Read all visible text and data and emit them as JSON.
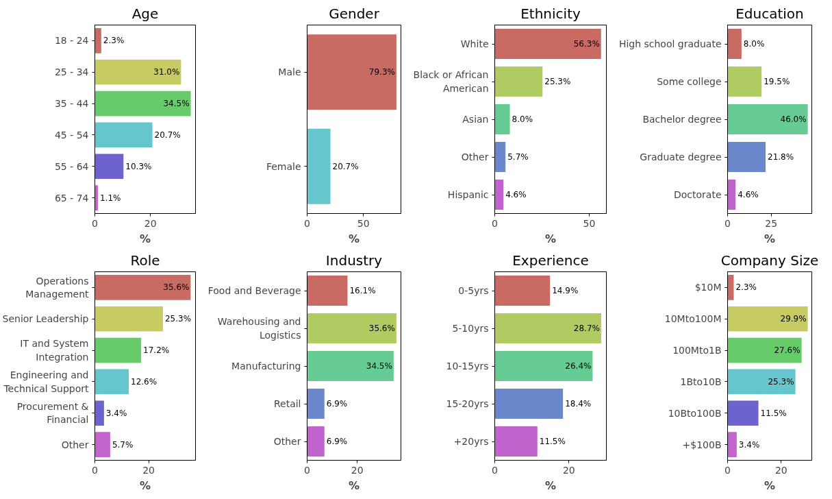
{
  "chart_data": [
    {
      "type": "bar",
      "orientation": "horizontal",
      "title": "Age",
      "xlabel": "%",
      "categories": [
        "18 - 24",
        "25 - 34",
        "35 - 44",
        "45 - 54",
        "55 - 64",
        "65 - 74"
      ],
      "values": [
        2.3,
        31.0,
        34.5,
        20.7,
        10.3,
        1.1
      ],
      "value_labels": [
        "2.3%",
        "31.0%",
        "34.5%",
        "20.7%",
        "10.3%",
        "1.1%"
      ],
      "colors": [
        "#c96b63",
        "#c6cb63",
        "#66cc6a",
        "#66c6cd",
        "#6c63cc",
        "#c363cc"
      ],
      "xlim": [
        0,
        36.2
      ],
      "xticks": [
        0,
        20
      ],
      "grid": false,
      "legend": false
    },
    {
      "type": "bar",
      "orientation": "horizontal",
      "title": "Gender",
      "xlabel": "%",
      "categories": [
        "Male",
        "Female"
      ],
      "values": [
        79.3,
        20.7
      ],
      "value_labels": [
        "79.3%",
        "20.7%"
      ],
      "colors": [
        "#c96b63",
        "#66c6cd"
      ],
      "xlim": [
        0,
        83.3
      ],
      "xticks": [
        0,
        50
      ],
      "grid": false,
      "legend": false
    },
    {
      "type": "bar",
      "orientation": "horizontal",
      "title": "Ethnicity",
      "xlabel": "%",
      "categories": [
        "White",
        "Black or African American",
        "Asian",
        "Other",
        "Hispanic"
      ],
      "values": [
        56.3,
        25.3,
        8.0,
        5.7,
        4.6
      ],
      "value_labels": [
        "56.3%",
        "25.3%",
        "8.0%",
        "5.7%",
        "4.6%"
      ],
      "colors": [
        "#c96b63",
        "#b1cb63",
        "#66cc94",
        "#6b88cc",
        "#c063cc"
      ],
      "xlim": [
        0,
        59.1
      ],
      "xticks": [
        0,
        50
      ],
      "grid": false,
      "legend": false
    },
    {
      "type": "bar",
      "orientation": "horizontal",
      "title": "Education",
      "xlabel": "%",
      "categories": [
        "High school graduate",
        "Some college",
        "Bachelor degree",
        "Graduate degree",
        "Doctorate"
      ],
      "values": [
        8.0,
        19.5,
        46.0,
        21.8,
        4.6
      ],
      "value_labels": [
        "8.0%",
        "19.5%",
        "46.0%",
        "21.8%",
        "4.6%"
      ],
      "colors": [
        "#c96b63",
        "#b1cb63",
        "#66cc94",
        "#6b88cc",
        "#c063cc"
      ],
      "xlim": [
        0,
        48.3
      ],
      "xticks": [
        0,
        25
      ],
      "grid": false,
      "legend": false
    },
    {
      "type": "bar",
      "orientation": "horizontal",
      "title": "Role",
      "xlabel": "%",
      "categories": [
        "Operations Management",
        "Senior Leadership",
        "IT and System Integration",
        "Engineering and Technical Support",
        "Procurement & Financial",
        "Other"
      ],
      "values": [
        35.6,
        25.3,
        17.2,
        12.6,
        3.4,
        5.7
      ],
      "value_labels": [
        "35.6%",
        "25.3%",
        "17.2%",
        "12.6%",
        "3.4%",
        "5.7%"
      ],
      "colors": [
        "#c96b63",
        "#c6cb63",
        "#66cc6a",
        "#66c6cd",
        "#6c63cc",
        "#c363cc"
      ],
      "xlim": [
        0,
        37.4
      ],
      "xticks": [
        0,
        20
      ],
      "grid": false,
      "legend": false
    },
    {
      "type": "bar",
      "orientation": "horizontal",
      "title": "Industry",
      "xlabel": "%",
      "categories": [
        "Food and Beverage",
        "Warehousing and Logistics",
        "Manufacturing",
        "Retail",
        "Other"
      ],
      "values": [
        16.1,
        35.6,
        34.5,
        6.9,
        6.9
      ],
      "value_labels": [
        "16.1%",
        "35.6%",
        "34.5%",
        "6.9%",
        "6.9%"
      ],
      "colors": [
        "#c96b63",
        "#b1cb63",
        "#66cc94",
        "#6b88cc",
        "#c063cc"
      ],
      "xlim": [
        0,
        37.4
      ],
      "xticks": [
        0,
        20
      ],
      "grid": false,
      "legend": false
    },
    {
      "type": "bar",
      "orientation": "horizontal",
      "title": "Experience",
      "xlabel": "%",
      "categories": [
        "0-5yrs",
        "5-10yrs",
        "10-15yrs",
        "15-20yrs",
        "+20yrs"
      ],
      "values": [
        14.9,
        28.7,
        26.4,
        18.4,
        11.5
      ],
      "value_labels": [
        "14.9%",
        "28.7%",
        "26.4%",
        "18.4%",
        "11.5%"
      ],
      "colors": [
        "#c96b63",
        "#b1cb63",
        "#66cc94",
        "#6b88cc",
        "#c063cc"
      ],
      "xlim": [
        0,
        30.1
      ],
      "xticks": [
        0,
        20
      ],
      "grid": false,
      "legend": false
    },
    {
      "type": "bar",
      "orientation": "horizontal",
      "title": "Company Size",
      "xlabel": "%",
      "categories": [
        "$10M",
        "10Mto100M",
        "100Mto1B",
        "1Bto10B",
        "10Bto100B",
        "+$100B"
      ],
      "values": [
        2.3,
        29.9,
        27.6,
        25.3,
        11.5,
        3.4
      ],
      "value_labels": [
        "2.3%",
        "29.9%",
        "27.6%",
        "25.3%",
        "11.5%",
        "3.4%"
      ],
      "colors": [
        "#c96b63",
        "#c6cb63",
        "#66cc6a",
        "#66c6cd",
        "#6c63cc",
        "#c363cc"
      ],
      "xlim": [
        0,
        31.4
      ],
      "xticks": [
        0,
        20
      ],
      "grid": false,
      "legend": false
    }
  ]
}
